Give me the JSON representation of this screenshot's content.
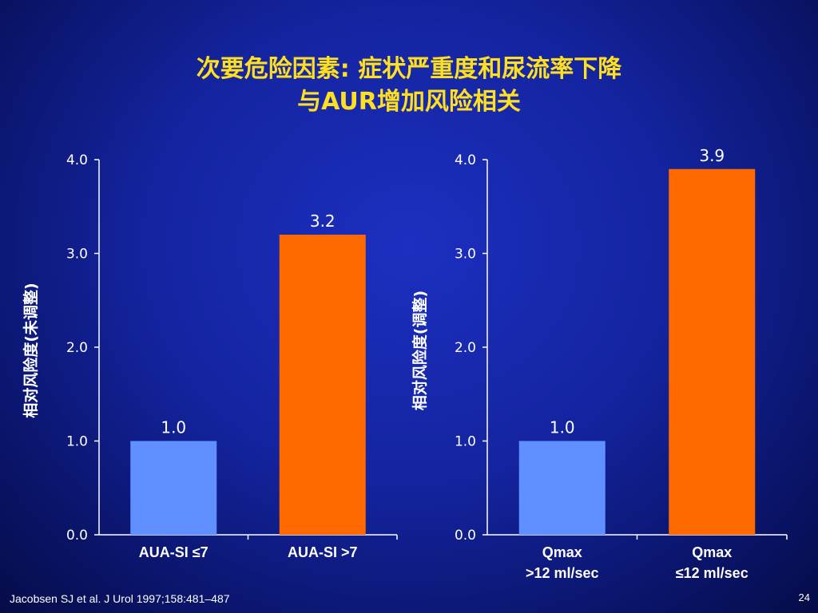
{
  "slide": {
    "title_line1": "次要危险因素: 症状严重度和尿流率下降",
    "title_line2": "与AUR增加风险相关",
    "citation": "Jacobsen SJ et al. J Urol 1997;158:481–487",
    "page_number": "24"
  },
  "colors": {
    "background": "#1424a0",
    "title": "#ffe020",
    "bar_reference": "#6090ff",
    "bar_risk": "#ff6a00",
    "text": "#ffffff"
  },
  "chart_data": [
    {
      "type": "bar",
      "categories": [
        "AUA-SI ≤7",
        "AUA-SI >7"
      ],
      "values": [
        1.0,
        3.2
      ],
      "data_labels": [
        "1.0",
        "3.2"
      ],
      "bar_colors": [
        "#6090ff",
        "#ff6a00"
      ],
      "ylabel": "相对风险度(未调整)",
      "xlabel": "",
      "ylim": [
        0,
        4
      ],
      "yticks": [
        "0.0",
        "1.0",
        "2.0",
        "3.0",
        "4.0"
      ],
      "grid": false
    },
    {
      "type": "bar",
      "categories": [
        "Qmax\n>12 ml/sec",
        "Qmax\n≤12 ml/sec"
      ],
      "values": [
        1.0,
        3.9
      ],
      "data_labels": [
        "1.0",
        "3.9"
      ],
      "bar_colors": [
        "#6090ff",
        "#ff6a00"
      ],
      "ylabel": "相对风险度(调整)",
      "xlabel": "",
      "ylim": [
        0,
        4
      ],
      "yticks": [
        "0.0",
        "1.0",
        "2.0",
        "3.0",
        "4.0"
      ],
      "grid": false
    }
  ]
}
